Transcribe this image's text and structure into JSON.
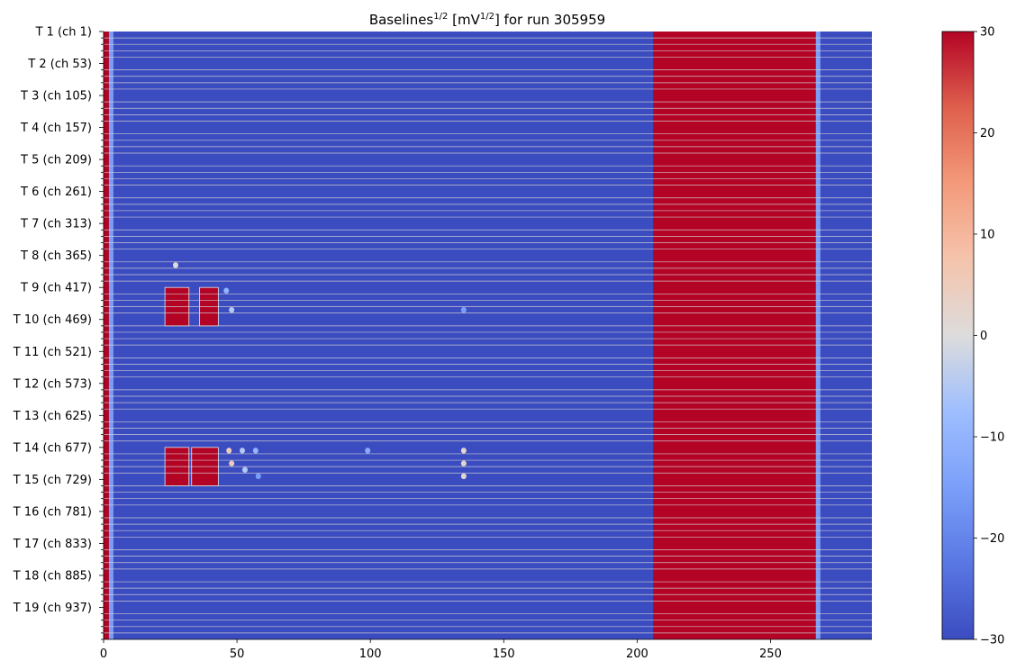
{
  "chart_data": {
    "type": "heatmap",
    "title": {
      "prefix": "Baselines",
      "prefix_sup": "1/2",
      "unit_open": " [mV",
      "unit_sup": "1/2",
      "suffix": "] for run 305959"
    },
    "xlabel": "",
    "ylabel": "",
    "colormap": "coolwarm",
    "xlim": [
      0,
      288
    ],
    "n_rows": 95,
    "rows_per_group": 5,
    "x_ticks": [
      0,
      50,
      100,
      150,
      200,
      250
    ],
    "y_group_labels": [
      "T 1 (ch 1)",
      "T 2 (ch 53)",
      "T 3 (ch 105)",
      "T 4 (ch 157)",
      "T 5 (ch 209)",
      "T 6 (ch 261)",
      "T 7 (ch 313)",
      "T 8 (ch 365)",
      "T 9 (ch 417)",
      "T 10 (ch 469)",
      "T 11 (ch 521)",
      "T 12 (ch 573)",
      "T 13 (ch 625)",
      "T 14 (ch 677)",
      "T 15 (ch 729)",
      "T 16 (ch 781)",
      "T 17 (ch 833)",
      "T 18 (ch 885)",
      "T 19 (ch 937)"
    ],
    "colorbar": {
      "min": -30,
      "max": 30,
      "ticks": [
        "30",
        "20",
        "10",
        "0",
        "−10",
        "−20",
        "−30"
      ],
      "tick_values": [
        30,
        20,
        10,
        0,
        -10,
        -20,
        -30
      ]
    },
    "background_value": -30,
    "bands": [
      {
        "x_start": 0,
        "x_end": 2,
        "rows": [
          0,
          94
        ],
        "value": 30
      },
      {
        "x_start": 206,
        "x_end": 267,
        "rows": [
          0,
          94
        ],
        "value": 30
      }
    ],
    "blocks": [
      {
        "x_start": 23,
        "x_end": 32,
        "rows": [
          40,
          45
        ],
        "value": 30
      },
      {
        "x_start": 36,
        "x_end": 43,
        "rows": [
          40,
          45
        ],
        "value": 30
      },
      {
        "x_start": 23,
        "x_end": 32,
        "rows": [
          65,
          70
        ],
        "value": 30
      },
      {
        "x_start": 33,
        "x_end": 43,
        "rows": [
          65,
          70
        ],
        "value": 30
      }
    ],
    "speckles": [
      {
        "x": 27,
        "row": 36,
        "value": 0
      },
      {
        "x": 46,
        "row": 40,
        "value": -10
      },
      {
        "x": 48,
        "row": 43,
        "value": -5
      },
      {
        "x": 135,
        "row": 43,
        "value": -15
      },
      {
        "x": 47,
        "row": 65,
        "value": 5
      },
      {
        "x": 52,
        "row": 65,
        "value": -5
      },
      {
        "x": 57,
        "row": 65,
        "value": -10
      },
      {
        "x": 48,
        "row": 67,
        "value": 5
      },
      {
        "x": 53,
        "row": 68,
        "value": -5
      },
      {
        "x": 58,
        "row": 69,
        "value": -15
      },
      {
        "x": 99,
        "row": 65,
        "value": -12
      },
      {
        "x": 135,
        "row": 65,
        "value": 2
      },
      {
        "x": 135,
        "row": 67,
        "value": 2
      },
      {
        "x": 135,
        "row": 69,
        "value": 2
      }
    ],
    "grid": false
  }
}
